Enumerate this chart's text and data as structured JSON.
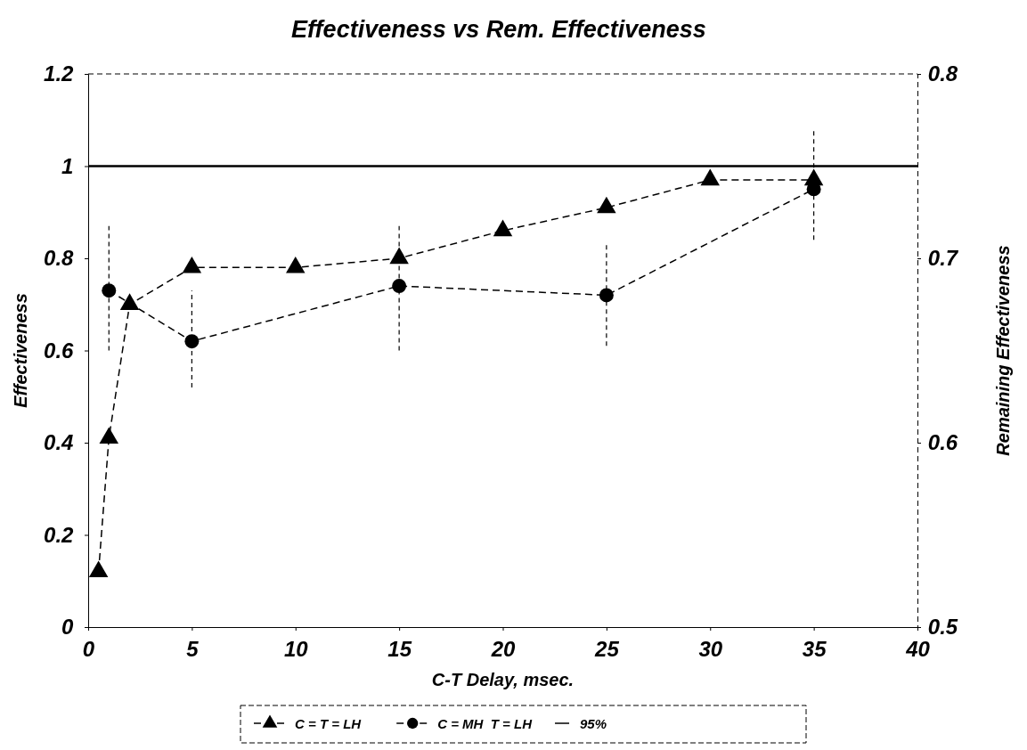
{
  "chart_data": {
    "type": "line",
    "title": "Effectiveness vs Rem. Effectiveness",
    "xlabel": "C-T Delay, msec.",
    "ylabel": "Effectiveness",
    "y2label": "Remaining Effectiveness",
    "xlim": [
      0,
      40
    ],
    "xticks": [
      0,
      5,
      10,
      15,
      20,
      25,
      30,
      35,
      40
    ],
    "ylim": [
      0,
      1.2
    ],
    "yticks": [
      0,
      0.2,
      0.4,
      0.6,
      0.8,
      1,
      1.2
    ],
    "y2lim": [
      0.5,
      0.8
    ],
    "y2ticks": [
      0.5,
      0.6,
      0.7,
      0.8
    ],
    "grid": false,
    "legend": "bottom",
    "line_style": "dashed",
    "ref_lines": [
      {
        "axis": "y",
        "value": 1,
        "color": "#000000",
        "line_style": "solid"
      }
    ],
    "annotations": [
      "95%"
    ],
    "series": [
      {
        "name": "C = T = LH",
        "color": "#000000",
        "marker": "triangle",
        "x": [
          0.5,
          1,
          2,
          5,
          10,
          15,
          20,
          25,
          30,
          35
        ],
        "values": [
          0.12,
          0.41,
          0.7,
          0.78,
          0.78,
          0.8,
          0.86,
          0.91,
          0.97,
          0.97
        ]
      },
      {
        "name": "C = MH  T = LH",
        "color": "#000000",
        "marker": "circle",
        "x": [
          1,
          5,
          15,
          25,
          35
        ],
        "values": [
          0.73,
          0.62,
          0.74,
          0.72,
          0.95
        ],
        "errors": [
          [
            0.6,
            0.87
          ],
          [
            0.52,
            0.73
          ],
          [
            0.6,
            0.87
          ],
          [
            0.61,
            0.83
          ],
          [
            0.84,
            1.08
          ]
        ]
      }
    ]
  }
}
